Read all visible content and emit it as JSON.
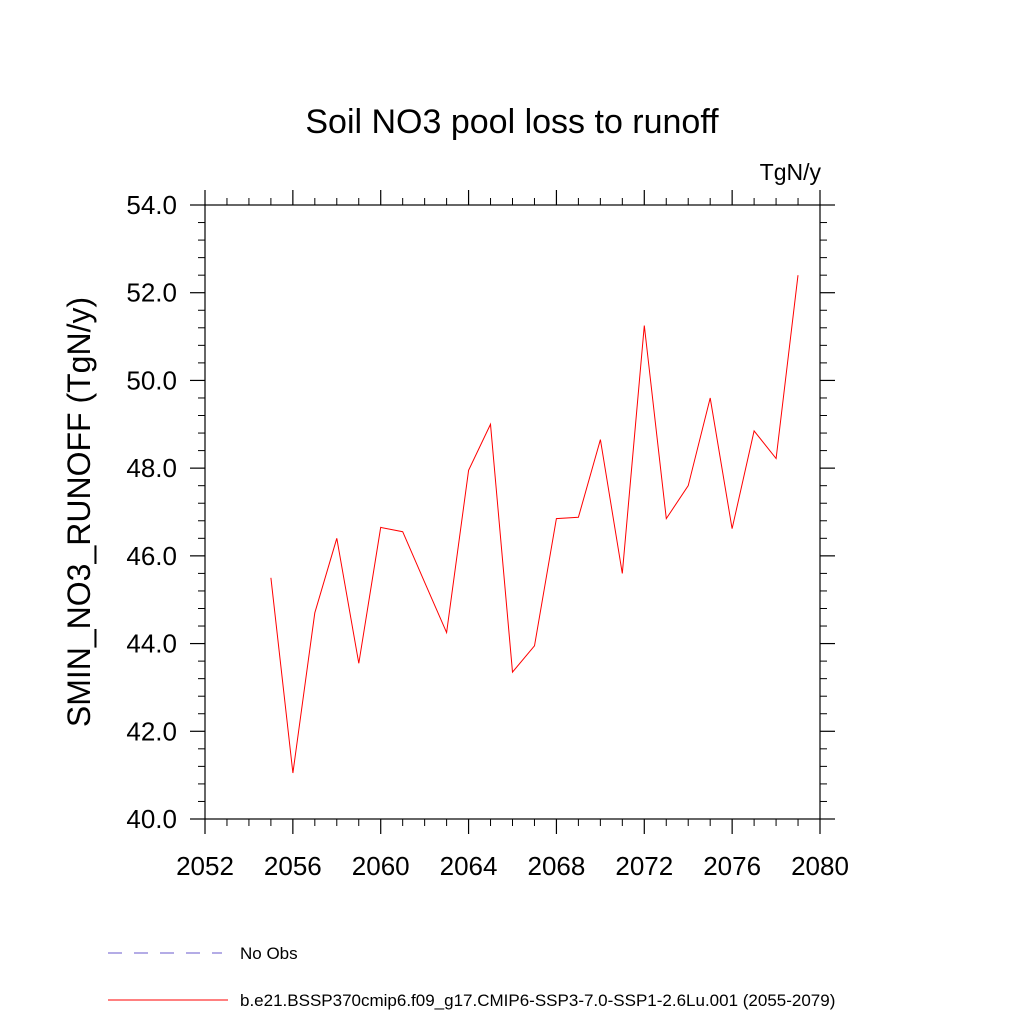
{
  "chart_data": {
    "type": "line",
    "title": "Soil NO3 pool loss to runoff",
    "units_label": "TgN/y",
    "ylabel": "SMIN_NO3_RUNOFF  (TgN/y)",
    "xlabel": "",
    "xlim": [
      2052,
      2080
    ],
    "ylim": [
      40.0,
      54.0
    ],
    "x_ticks": [
      2052,
      2056,
      2060,
      2064,
      2068,
      2072,
      2076,
      2080
    ],
    "y_ticks": [
      "40.0",
      "42.0",
      "44.0",
      "46.0",
      "48.0",
      "50.0",
      "52.0",
      "54.0"
    ],
    "grid": false,
    "legend_position": "bottom",
    "legend": [
      {
        "label": "No Obs",
        "style": "dashed",
        "color": "#6a5acd"
      },
      {
        "label": "b.e21.BSSP370cmip6.f09_g17.CMIP6-SSP3-7.0-SSP1-2.6Lu.001 (2055-2079)",
        "style": "solid",
        "color": "#ff0000"
      }
    ],
    "series": [
      {
        "name": "b.e21.BSSP370cmip6.f09_g17.CMIP6-SSP3-7.0-SSP1-2.6Lu.001 (2055-2079)",
        "color": "#ff0000",
        "x": [
          2055,
          2056,
          2057,
          2058,
          2059,
          2060,
          2061,
          2062,
          2063,
          2064,
          2065,
          2066,
          2067,
          2068,
          2069,
          2070,
          2071,
          2072,
          2073,
          2074,
          2075,
          2076,
          2077,
          2078,
          2079
        ],
        "y": [
          45.5,
          41.05,
          44.7,
          46.4,
          43.55,
          46.65,
          46.55,
          45.4,
          44.25,
          47.95,
          49.0,
          43.35,
          43.95,
          46.85,
          46.88,
          48.65,
          45.6,
          51.25,
          46.85,
          47.6,
          49.6,
          46.62,
          48.85,
          48.22,
          52.4
        ]
      }
    ]
  }
}
